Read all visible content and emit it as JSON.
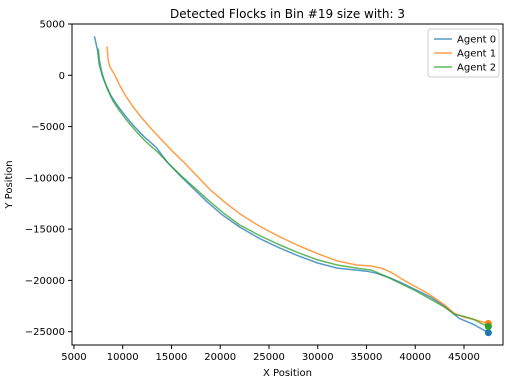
{
  "chart_data": {
    "type": "line",
    "title": "Detected Flocks in Bin #19 size with: 3",
    "xlabel": "X Position",
    "ylabel": "Y Position",
    "xlim": [
      4800,
      49000
    ],
    "ylim": [
      -26300,
      5000
    ],
    "xticks": [
      5000,
      10000,
      15000,
      20000,
      25000,
      30000,
      35000,
      40000,
      45000
    ],
    "xtick_labels": [
      "5000",
      "10000",
      "15000",
      "20000",
      "25000",
      "30000",
      "35000",
      "40000",
      "45000"
    ],
    "yticks": [
      5000,
      0,
      -5000,
      -10000,
      -15000,
      -20000,
      -25000
    ],
    "ytick_labels": [
      "5000",
      "0",
      "−5000",
      "−10000",
      "−15000",
      "−20000",
      "−25000"
    ],
    "grid": false,
    "legend_position": "top-right",
    "series": [
      {
        "name": "Agent 0",
        "color": "#1f77b4",
        "end_marker": true,
        "x": [
          7100,
          7400,
          7600,
          7900,
          8300,
          8800,
          9500,
          10300,
          11200,
          12200,
          13400,
          14600,
          15800,
          17200,
          18600,
          20200,
          22000,
          24000,
          26000,
          28000,
          30000,
          32000,
          34000,
          35000,
          36000,
          37500,
          38500,
          40000,
          41500,
          43000,
          44500,
          46000,
          47500
        ],
        "y": [
          3800,
          2500,
          1000,
          0,
          -1000,
          -2000,
          -3000,
          -4000,
          -5000,
          -6000,
          -7000,
          -8500,
          -9700,
          -11000,
          -12300,
          -13600,
          -14800,
          -15900,
          -16800,
          -17600,
          -18300,
          -18800,
          -19000,
          -19100,
          -19300,
          -19800,
          -20200,
          -20900,
          -21600,
          -22500,
          -23700,
          -24300,
          -25100
        ]
      },
      {
        "name": "Agent 1",
        "color": "#ff7f0e",
        "end_marker": true,
        "x": [
          8400,
          8500,
          8700,
          9200,
          9700,
          10300,
          11000,
          12000,
          13000,
          14000,
          15200,
          16400,
          17600,
          19000,
          20500,
          22000,
          24000,
          26000,
          28000,
          30000,
          32000,
          34000,
          35500,
          36500,
          37500,
          38500,
          40000,
          41500,
          43000,
          44000,
          45000,
          46000,
          47500
        ],
        "y": [
          2800,
          1500,
          800,
          0,
          -1000,
          -2000,
          -3000,
          -4200,
          -5300,
          -6300,
          -7500,
          -8600,
          -9800,
          -11200,
          -12400,
          -13500,
          -14700,
          -15700,
          -16600,
          -17400,
          -18100,
          -18500,
          -18600,
          -18800,
          -19200,
          -19800,
          -20600,
          -21400,
          -22400,
          -23200,
          -23600,
          -23800,
          -24200
        ]
      },
      {
        "name": "Agent 2",
        "color": "#2ca02c",
        "end_marker": true,
        "x": [
          7500,
          7600,
          7800,
          8100,
          8500,
          9000,
          9700,
          10500,
          11400,
          12400,
          13600,
          14800,
          16000,
          17400,
          18800,
          20300,
          22000,
          24000,
          26000,
          28000,
          30000,
          32000,
          34000,
          35500,
          37000,
          38500,
          40000,
          41500,
          43000,
          44000,
          45000,
          46000,
          47000,
          47500
        ],
        "y": [
          2600,
          1500,
          500,
          -500,
          -1500,
          -2500,
          -3500,
          -4500,
          -5500,
          -6500,
          -7500,
          -8700,
          -9800,
          -11000,
          -12200,
          -13400,
          -14600,
          -15600,
          -16500,
          -17300,
          -18000,
          -18500,
          -18800,
          -19000,
          -19600,
          -20300,
          -21000,
          -21800,
          -22600,
          -23300,
          -23500,
          -23800,
          -24300,
          -24500
        ]
      }
    ]
  }
}
